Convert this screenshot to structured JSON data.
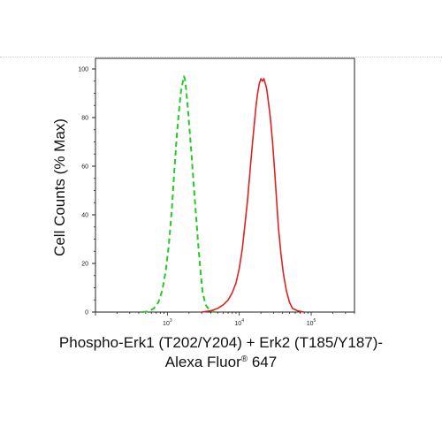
{
  "chart_data": {
    "type": "line",
    "title": "",
    "ylabel": "Cell Counts (% Max)",
    "xlabel": {
      "line1": "Phospho-Erk1 (T202/Y204) + Erk2 (T185/Y187)-",
      "line2_prefix": "Alexa Fluor",
      "line2_mark": "®",
      "line2_suffix": " 647"
    },
    "x_scale": "log",
    "xlim": [
      100,
      400000
    ],
    "ylim": [
      0,
      100
    ],
    "y_ticks": [
      "0",
      "20",
      "40",
      "60",
      "80",
      "100"
    ],
    "x_ticks": [
      {
        "base": "10",
        "exp": "3",
        "value": 1000
      },
      {
        "base": "10",
        "exp": "4",
        "value": 10000
      },
      {
        "base": "10",
        "exp": "5",
        "value": 100000
      }
    ],
    "grid": false,
    "series": [
      {
        "color": "#22cc22",
        "line_style": "dashed",
        "points": [
          [
            450,
            0
          ],
          [
            550,
            0.3
          ],
          [
            650,
            1.5
          ],
          [
            750,
            4
          ],
          [
            850,
            9
          ],
          [
            950,
            17
          ],
          [
            1050,
            28
          ],
          [
            1150,
            42
          ],
          [
            1250,
            58
          ],
          [
            1350,
            72
          ],
          [
            1450,
            83
          ],
          [
            1550,
            91
          ],
          [
            1650,
            95
          ],
          [
            1700,
            97
          ],
          [
            1750,
            96
          ],
          [
            1800,
            93
          ],
          [
            1900,
            86
          ],
          [
            2000,
            78
          ],
          [
            2150,
            66
          ],
          [
            2300,
            54
          ],
          [
            2500,
            40
          ],
          [
            2700,
            27
          ],
          [
            2900,
            16
          ],
          [
            3100,
            8
          ],
          [
            3400,
            3
          ],
          [
            3800,
            1
          ],
          [
            4500,
            0
          ]
        ]
      },
      {
        "color": "#dd2222",
        "line_style": "solid",
        "points": [
          [
            3000,
            0
          ],
          [
            4000,
            0.5
          ],
          [
            5000,
            1.5
          ],
          [
            6000,
            3
          ],
          [
            7000,
            5
          ],
          [
            8000,
            8
          ],
          [
            9000,
            12
          ],
          [
            10000,
            18
          ],
          [
            11000,
            26
          ],
          [
            12000,
            36
          ],
          [
            13000,
            46
          ],
          [
            14000,
            57
          ],
          [
            15000,
            67
          ],
          [
            16000,
            76
          ],
          [
            17000,
            84
          ],
          [
            18000,
            90
          ],
          [
            19000,
            94
          ],
          [
            20000,
            96
          ],
          [
            21000,
            95
          ],
          [
            22000,
            96
          ],
          [
            23000,
            94
          ],
          [
            24000,
            92
          ],
          [
            25000,
            88
          ],
          [
            27000,
            80
          ],
          [
            29000,
            70
          ],
          [
            31000,
            58
          ],
          [
            33000,
            46
          ],
          [
            35000,
            35
          ],
          [
            38000,
            24
          ],
          [
            41000,
            16
          ],
          [
            45000,
            9
          ],
          [
            50000,
            4
          ],
          [
            55000,
            1.5
          ],
          [
            65000,
            0.5
          ],
          [
            80000,
            0
          ]
        ]
      }
    ]
  }
}
